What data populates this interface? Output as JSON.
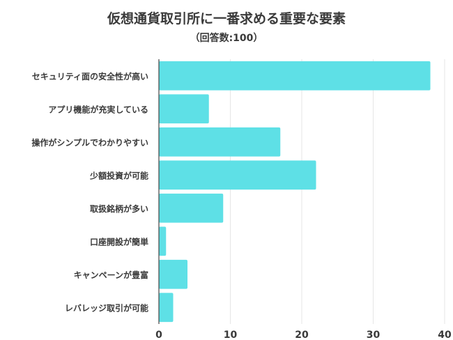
{
  "title": "仮想通貨取引所に一番求める重要な要素",
  "subtitle": "（回答数:100）",
  "chart_data": {
    "type": "bar",
    "orientation": "horizontal",
    "title": "仮想通貨取引所に一番求める重要な要素",
    "subtitle": "（回答数:100）",
    "categories": [
      "セキュリティ面の安全性が高い",
      "アプリ機能が充実している",
      "操作がシンプルでわかりやすい",
      "少額投資が可能",
      "取扱銘柄が多い",
      "口座開設が簡単",
      "キャンペーンが豊富",
      "レバレッジ取引が可能"
    ],
    "values": [
      38,
      7,
      17,
      22,
      9,
      1,
      4,
      2
    ],
    "xlim": [
      0,
      40
    ],
    "xticks": [
      0,
      10,
      20,
      30,
      40
    ],
    "xlabel": "",
    "ylabel": "",
    "grid": true,
    "bar_color": "#5ee0e6",
    "grid_color": "#e6e6e6",
    "axis_color": "#444444"
  }
}
